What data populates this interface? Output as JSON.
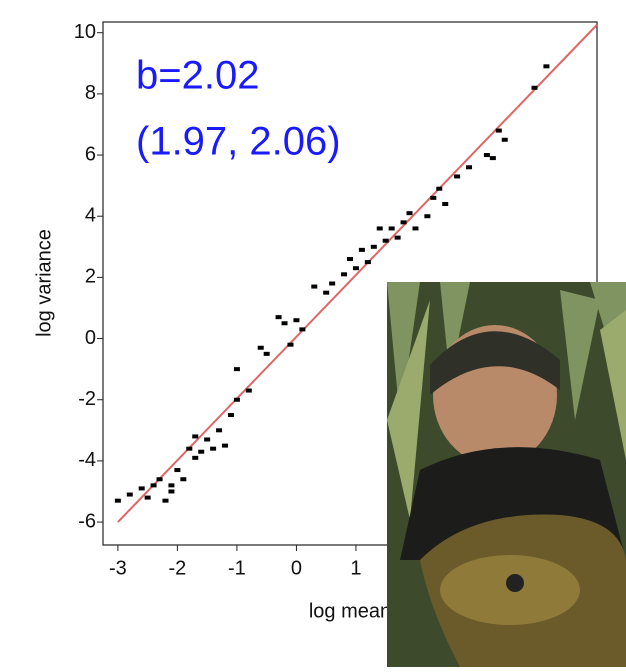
{
  "chart_data": {
    "type": "scatter",
    "x_label": "log mean",
    "y_label": "log variance",
    "annotations": [
      "b=2.02",
      "(1.97, 2.06)"
    ],
    "xlim": [
      -3.25,
      5.05
    ],
    "ylim": [
      -6.75,
      10.35
    ],
    "xticks": [
      -3,
      -2,
      -1,
      0,
      1
    ],
    "yticks": [
      -6,
      -4,
      -2,
      0,
      2,
      4,
      6,
      8,
      10
    ],
    "color": "#000000",
    "x": [
      -3,
      -2.8,
      -2.6,
      -2.5,
      -2.4,
      -2.3,
      -2.2,
      -2.1,
      -2.0,
      -1.9,
      -1.8,
      -1.7,
      -1.6,
      -1.5,
      -1.4,
      -1.3,
      -1.2,
      -1.1,
      -1.0,
      -0.8,
      -1.0,
      -0.6,
      -0.5,
      -0.3,
      -0.2,
      -0.1,
      0.0,
      0.1,
      0.3,
      0.5,
      0.6,
      0.8,
      0.9,
      1.0,
      1.1,
      1.2,
      1.3,
      1.5,
      1.6,
      1.7,
      1.8,
      1.9,
      2.0,
      2.2,
      2.3,
      2.5,
      2.7,
      2.9,
      3.2,
      3.3,
      3.4,
      3.5,
      4.0,
      4.2,
      -2.1,
      -1.7,
      1.4,
      2.4
    ],
    "values": [
      -5.3,
      -5.1,
      -4.9,
      -5.2,
      -4.8,
      -4.6,
      -5.3,
      -5.0,
      -4.3,
      -4.6,
      -3.6,
      -3.9,
      -3.7,
      -3.3,
      -3.6,
      -3.0,
      -3.5,
      -2.5,
      -2.0,
      -1.7,
      -1.0,
      -0.3,
      -0.5,
      0.7,
      0.5,
      -0.2,
      0.6,
      0.3,
      1.7,
      1.5,
      1.8,
      2.1,
      2.6,
      2.3,
      2.9,
      2.5,
      3.0,
      3.2,
      3.6,
      3.3,
      3.8,
      4.1,
      3.6,
      4.0,
      4.6,
      4.4,
      5.3,
      5.6,
      6.0,
      5.9,
      6.8,
      6.5,
      8.2,
      8.9,
      -4.8,
      -3.2,
      3.6,
      4.9
    ],
    "fit_line": {
      "color": "#e06666",
      "x": [
        -3,
        5.05
      ],
      "values": [
        -6.0,
        10.26
      ]
    }
  }
}
